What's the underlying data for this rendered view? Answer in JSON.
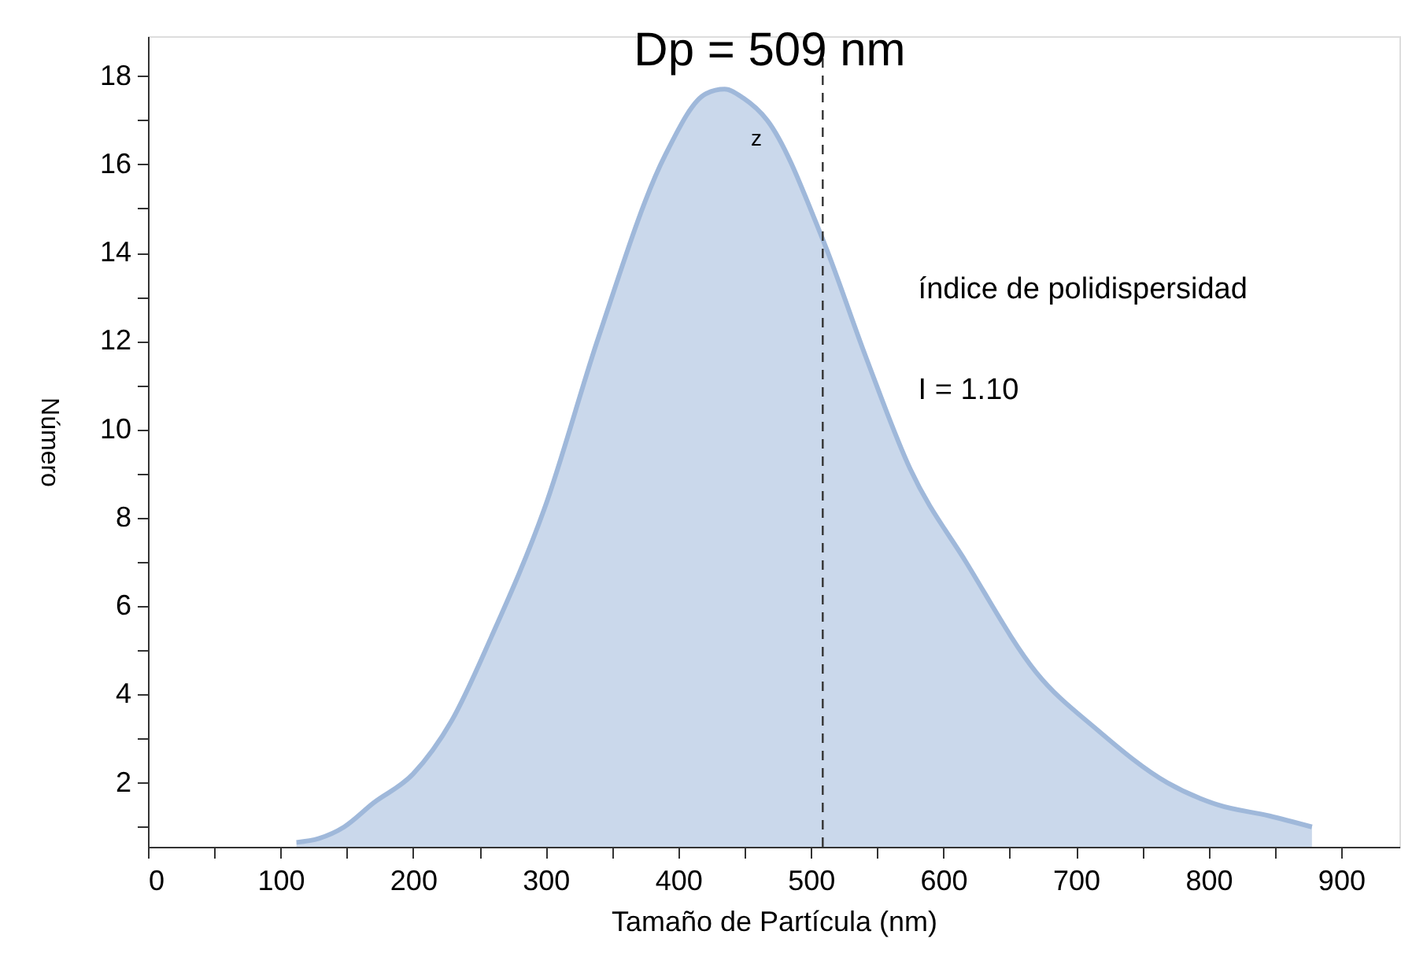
{
  "chart_data": {
    "type": "area",
    "xlabel": "Tamaño de Partícula (nm)",
    "ylabel": "Número",
    "x": [
      112,
      129,
      148,
      170,
      200,
      229,
      259,
      299,
      340,
      390,
      421,
      435,
      449,
      467,
      509,
      542,
      575,
      617,
      670,
      716,
      769,
      807,
      846,
      878
    ],
    "series": [
      {
        "color": "#9fb8da",
        "values": [
          0.65,
          0.74,
          1.0,
          1.54,
          2.2,
          3.4,
          5.3,
          8.2,
          12.1,
          16.2,
          17.6,
          17.7,
          17.5,
          17.0,
          14.3,
          11.6,
          9.1,
          7.0,
          4.5,
          3.2,
          2.0,
          1.5,
          1.25,
          1.0
        ]
      }
    ],
    "xlim": [
      0,
      944
    ],
    "ylim": [
      0.55,
      18.9
    ],
    "xticks": [
      0,
      {
        "value": 50,
        "label": null
      },
      100,
      {
        "value": 150,
        "label": null
      },
      200,
      {
        "value": 250,
        "label": null
      },
      300,
      {
        "value": 350,
        "label": null
      },
      400,
      {
        "value": 450,
        "label": null
      },
      500,
      {
        "value": 550,
        "label": null
      },
      600,
      {
        "value": 650,
        "label": null
      },
      700,
      {
        "value": 750,
        "label": null
      },
      800,
      {
        "value": 850,
        "label": null
      },
      900
    ],
    "yticks": [
      {
        "value": 1,
        "label": null
      },
      2,
      {
        "value": 3,
        "label": null
      },
      4,
      {
        "value": 5,
        "label": null
      },
      6,
      {
        "value": 7,
        "label": null
      },
      8,
      {
        "value": 9,
        "label": null
      },
      10,
      {
        "value": 11,
        "label": null
      },
      12,
      {
        "value": 13,
        "label": null
      },
      14,
      {
        "value": 15,
        "label": null
      },
      16,
      {
        "value": 17,
        "label": null
      },
      18
    ],
    "ref_lines": [
      {
        "axis": "x",
        "value": 509,
        "label": "Dp   = 509 nm",
        "line_style": "dashed",
        "color": "#333333"
      }
    ],
    "annotations": [
      "z",
      "índice de polidispersidad",
      "I = 1.10"
    ],
    "grid": false
  }
}
